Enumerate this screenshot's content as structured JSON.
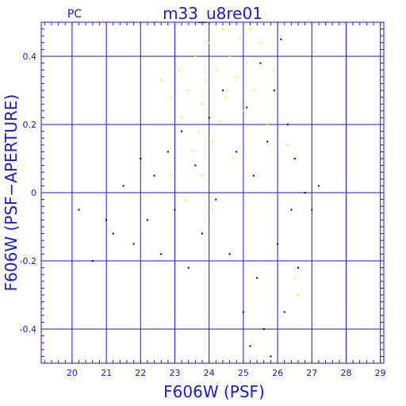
{
  "chart_data": {
    "type": "scatter",
    "corner_label": "PC",
    "title": "m33_u8re01",
    "xlabel": "F606W (PSF)",
    "ylabel": "F606W (PSF−APERTURE)",
    "xlim": [
      19.1,
      29.1
    ],
    "ylim": [
      -0.5,
      0.5
    ],
    "x_ticks": [
      20,
      21,
      22,
      23,
      24,
      25,
      26,
      27,
      28,
      29
    ],
    "x_tick_labels": [
      "20",
      "21",
      "22",
      "23",
      "24",
      "25",
      "26",
      "27",
      "28",
      "29"
    ],
    "y_ticks": [
      0.4,
      0.2,
      0,
      -0.2,
      -0.4
    ],
    "y_tick_labels": [
      "0.4",
      "0.2",
      "0",
      "-0.2",
      "-0.4"
    ],
    "grid": true,
    "colors": {
      "axes": "#1a1ad0",
      "series_black": "#000000",
      "series_yellow": "#f0f000"
    },
    "series": [
      {
        "color": "#f0f000",
        "points": [
          [
            22.6,
            0.33
          ],
          [
            22.9,
            0.28
          ],
          [
            23.1,
            0.36
          ],
          [
            23.2,
            0.22
          ],
          [
            23.4,
            0.3
          ],
          [
            23.5,
            0.12
          ],
          [
            23.6,
            0.4
          ],
          [
            23.7,
            0.18
          ],
          [
            23.8,
            0.26
          ],
          [
            23.9,
            0.33
          ],
          [
            24.0,
            0.44
          ],
          [
            24.1,
            0.15
          ],
          [
            24.2,
            0.36
          ],
          [
            24.3,
            0.21
          ],
          [
            24.4,
            0.48
          ],
          [
            24.5,
            0.28
          ],
          [
            24.6,
            0.4
          ],
          [
            24.7,
            0.1
          ],
          [
            24.8,
            0.34
          ],
          [
            24.9,
            0.45
          ],
          [
            25.0,
            0.24
          ],
          [
            25.1,
            0.38
          ],
          [
            25.2,
            0.48
          ],
          [
            25.3,
            0.3
          ],
          [
            25.5,
            0.44
          ],
          [
            25.7,
            0.2
          ],
          [
            25.9,
            0.36
          ],
          [
            26.1,
            0.46
          ],
          [
            26.3,
            0.14
          ],
          [
            22.9,
            0.05
          ],
          [
            23.3,
            -0.02
          ],
          [
            23.8,
            0.05
          ],
          [
            24.1,
            -0.05
          ],
          [
            26.5,
            -0.25
          ],
          [
            26.6,
            -0.3
          ]
        ]
      },
      {
        "color": "#000000",
        "points": [
          [
            20.2,
            -0.05
          ],
          [
            20.6,
            -0.2
          ],
          [
            21.0,
            -0.08
          ],
          [
            21.2,
            -0.12
          ],
          [
            21.5,
            0.02
          ],
          [
            21.8,
            -0.15
          ],
          [
            22.0,
            0.1
          ],
          [
            22.2,
            -0.08
          ],
          [
            22.4,
            0.05
          ],
          [
            22.6,
            -0.18
          ],
          [
            22.8,
            0.12
          ],
          [
            23.0,
            -0.05
          ],
          [
            23.2,
            0.18
          ],
          [
            23.4,
            -0.22
          ],
          [
            23.6,
            0.08
          ],
          [
            23.8,
            -0.12
          ],
          [
            24.0,
            0.22
          ],
          [
            24.2,
            -0.02
          ],
          [
            24.4,
            0.3
          ],
          [
            24.6,
            -0.18
          ],
          [
            24.8,
            0.12
          ],
          [
            25.0,
            -0.35
          ],
          [
            25.1,
            0.25
          ],
          [
            25.2,
            -0.45
          ],
          [
            25.3,
            0.05
          ],
          [
            25.4,
            -0.25
          ],
          [
            25.5,
            0.38
          ],
          [
            25.6,
            -0.4
          ],
          [
            25.7,
            0.15
          ],
          [
            25.8,
            -0.48
          ],
          [
            25.9,
            0.3
          ],
          [
            26.0,
            -0.15
          ],
          [
            26.1,
            0.45
          ],
          [
            26.2,
            -0.35
          ],
          [
            26.3,
            0.2
          ],
          [
            26.4,
            -0.05
          ],
          [
            26.5,
            0.1
          ],
          [
            26.6,
            -0.22
          ],
          [
            26.8,
            0.0
          ],
          [
            27.0,
            -0.05
          ],
          [
            27.2,
            0.02
          ]
        ]
      }
    ]
  }
}
